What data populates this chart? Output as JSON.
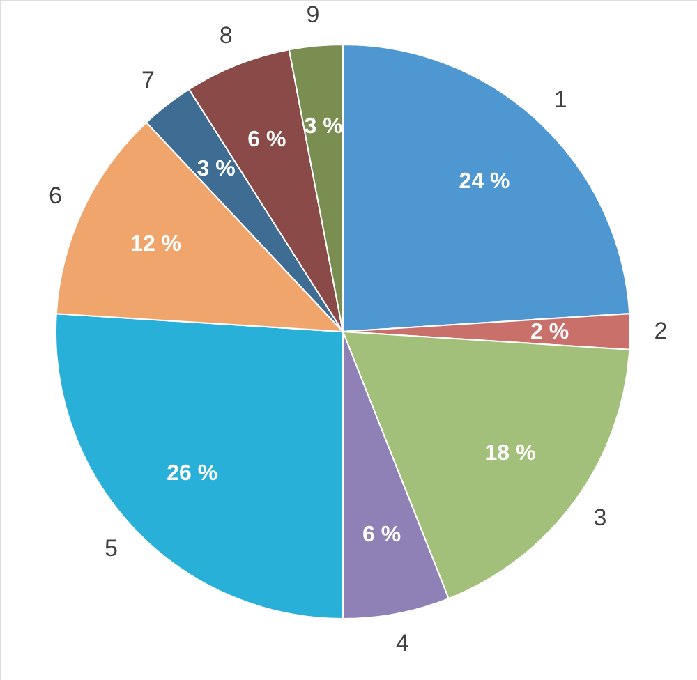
{
  "chart_data": {
    "type": "pie",
    "categories": [
      "1",
      "2",
      "3",
      "4",
      "5",
      "6",
      "7",
      "8",
      "9"
    ],
    "values": [
      24,
      2,
      18,
      6,
      26,
      12,
      3,
      6,
      3
    ],
    "value_labels": [
      "24 %",
      "2 %",
      "18 %",
      "6 %",
      "26 %",
      "12 %",
      "3 %",
      "6 %",
      "3 %"
    ],
    "colors": [
      "#4f97d0",
      "#c9706a",
      "#a3c07a",
      "#8f80b6",
      "#28b0d9",
      "#f0a56c",
      "#3e6c92",
      "#8a4a48",
      "#7a8e52"
    ]
  }
}
